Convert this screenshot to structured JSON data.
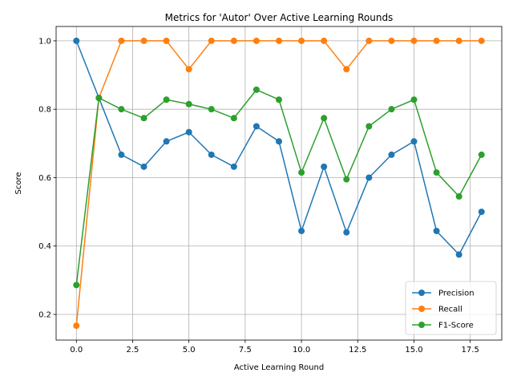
{
  "chart_data": {
    "type": "line",
    "title": "Metrics for 'Autor' Over Active Learning Rounds",
    "xlabel": "Active Learning Round",
    "ylabel": "Score",
    "xlim": [
      -0.9,
      18.9
    ],
    "ylim": [
      0.125,
      1.042
    ],
    "x_ticks": [
      0.0,
      2.5,
      5.0,
      7.5,
      10.0,
      12.5,
      15.0,
      17.5
    ],
    "x_tick_labels": [
      "0.0",
      "2.5",
      "5.0",
      "7.5",
      "10.0",
      "12.5",
      "15.0",
      "17.5"
    ],
    "y_ticks": [
      0.2,
      0.4,
      0.6,
      0.8,
      1.0
    ],
    "y_tick_labels": [
      "0.2",
      "0.4",
      "0.6",
      "0.8",
      "1.0"
    ],
    "grid": true,
    "legend_position": "lower-right",
    "x": [
      0,
      1,
      2,
      3,
      4,
      5,
      6,
      7,
      8,
      9,
      10,
      11,
      12,
      13,
      14,
      15,
      16,
      17,
      18
    ],
    "series": [
      {
        "name": "Precision",
        "color": "#1f77b4",
        "values": [
          1.0,
          0.833,
          0.667,
          0.632,
          0.706,
          0.733,
          0.667,
          0.632,
          0.75,
          0.706,
          0.444,
          0.632,
          0.44,
          0.6,
          0.667,
          0.706,
          0.444,
          0.375,
          0.5
        ]
      },
      {
        "name": "Recall",
        "color": "#ff7f0e",
        "values": [
          0.167,
          0.833,
          1.0,
          1.0,
          1.0,
          0.917,
          1.0,
          1.0,
          1.0,
          1.0,
          1.0,
          1.0,
          0.917,
          1.0,
          1.0,
          1.0,
          1.0,
          1.0,
          1.0
        ]
      },
      {
        "name": "F1-Score",
        "color": "#2ca02c",
        "values": [
          0.286,
          0.833,
          0.8,
          0.774,
          0.828,
          0.815,
          0.8,
          0.774,
          0.857,
          0.828,
          0.615,
          0.774,
          0.595,
          0.75,
          0.8,
          0.828,
          0.615,
          0.545,
          0.667
        ]
      }
    ]
  }
}
